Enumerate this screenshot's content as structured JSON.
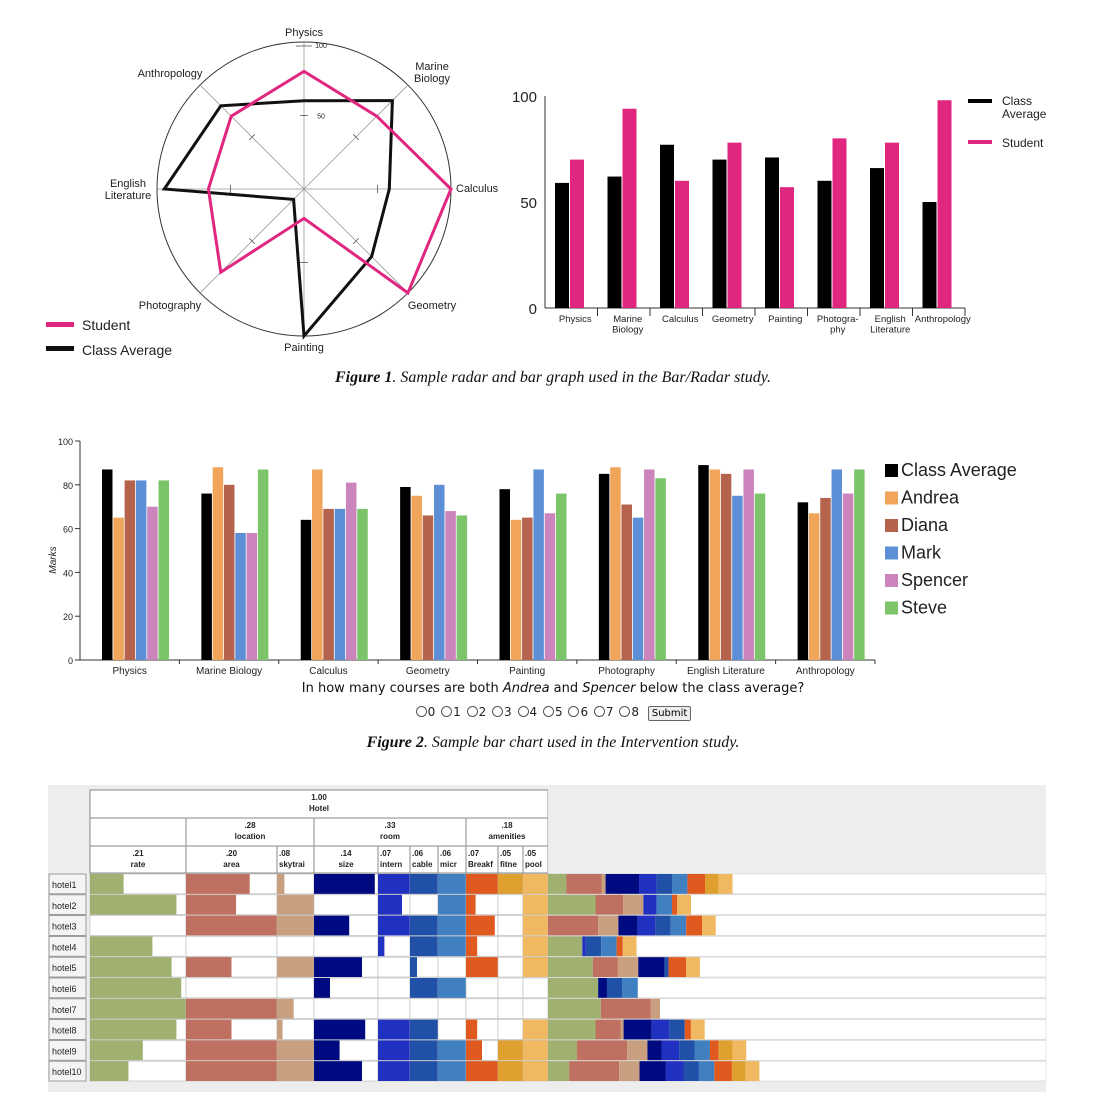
{
  "figure1": {
    "radar": {
      "axes": [
        "Physics",
        "Marine\nBiology",
        "Calculus",
        "Geometry",
        "Painting",
        "Photography",
        "English\nLiterature",
        "Anthropology"
      ],
      "ticks": [
        "100",
        "50"
      ],
      "series": [
        {
          "name": "Student",
          "color": "#e0267f",
          "values": [
            80,
            70,
            100,
            100,
            20,
            80,
            65,
            70
          ]
        },
        {
          "name": "Class Average",
          "color": "#111111",
          "values": [
            60,
            85,
            58,
            65,
            100,
            10,
            95,
            80
          ]
        }
      ],
      "legend": [
        "Student",
        "Class Average"
      ]
    },
    "bar": {
      "y_ticks": [
        "100",
        "50",
        "0"
      ],
      "categories": [
        "Physics",
        "Marine\nBiology",
        "Calculus",
        "Geometry",
        "Painting",
        "Photogra-\nphy",
        "English\nLiterature",
        "Anthropology"
      ],
      "series": [
        {
          "name": "Class\nAverage",
          "color": "#000000",
          "values": [
            59,
            62,
            77,
            70,
            71,
            60,
            66,
            50
          ]
        },
        {
          "name": "Student",
          "color": "#e0267f",
          "values": [
            70,
            94,
            60,
            78,
            57,
            80,
            78,
            98
          ]
        }
      ]
    },
    "caption_num": "Figure 1",
    "caption_text": ". Sample radar and bar graph used in the Bar/Radar study."
  },
  "figure2": {
    "ylabel": "Marks",
    "y_ticks": [
      "100",
      "80",
      "60",
      "40",
      "20",
      "0"
    ],
    "categories": [
      "Physics",
      "Marine Biology",
      "Calculus",
      "Geometry",
      "Painting",
      "Photography",
      "English Literature",
      "Anthropology"
    ],
    "series": [
      {
        "name": "Class Average",
        "color": "#000000",
        "values": [
          87,
          76,
          64,
          79,
          78,
          85,
          89,
          72
        ]
      },
      {
        "name": "Andrea",
        "color": "#f0a55a",
        "values": [
          65,
          88,
          87,
          75,
          64,
          88,
          87,
          67
        ]
      },
      {
        "name": "Diana",
        "color": "#b5634c",
        "values": [
          82,
          80,
          69,
          66,
          65,
          71,
          85,
          74
        ]
      },
      {
        "name": "Mark",
        "color": "#5c8fd6",
        "values": [
          82,
          58,
          69,
          80,
          87,
          65,
          75,
          87
        ]
      },
      {
        "name": "Spencer",
        "color": "#cc84bd",
        "values": [
          70,
          58,
          81,
          68,
          67,
          87,
          87,
          76
        ]
      },
      {
        "name": "Steve",
        "color": "#7cc46a",
        "values": [
          82,
          87,
          69,
          66,
          76,
          83,
          76,
          87
        ]
      }
    ],
    "question_pre": "In how many courses are both ",
    "question_a": "Andrea",
    "question_mid": " and ",
    "question_b": "Spencer",
    "question_post": " below the class average?",
    "options": [
      "0",
      "1",
      "2",
      "3",
      "4",
      "5",
      "6",
      "7",
      "8"
    ],
    "submit_label": "Submit",
    "caption_num": "Figure 2",
    "caption_text": ". Sample bar chart used in the Intervention study."
  },
  "figure3": {
    "root": {
      "weight": "1.00",
      "label": "Hotel"
    },
    "groups": [
      {
        "weight": ".28",
        "label": "location"
      },
      {
        "weight": ".33",
        "label": "room"
      },
      {
        "weight": ".18",
        "label": "amenities"
      }
    ],
    "attributes": [
      {
        "weight": ".21",
        "label": "rate",
        "color": "#a0b070"
      },
      {
        "weight": ".20",
        "label": "area",
        "color": "#c07060"
      },
      {
        "weight": ".08",
        "label": "skytrai",
        "color": "#c8a080"
      },
      {
        "weight": ".14",
        "label": "size",
        "color": "#000a80"
      },
      {
        "weight": ".07",
        "label": "intern",
        "color": "#2030c0"
      },
      {
        "weight": ".06",
        "label": "cable",
        "color": "#2050a8"
      },
      {
        "weight": ".06",
        "label": "micr",
        "color": "#4080c0"
      },
      {
        "weight": ".07",
        "label": "Breakf",
        "color": "#e05a20"
      },
      {
        "weight": ".05",
        "label": "fitne",
        "color": "#e0a030"
      },
      {
        "weight": ".05",
        "label": "pool",
        "color": "#f0b860"
      }
    ],
    "hotels": [
      "hotel1",
      "hotel2",
      "hotel3",
      "hotel4",
      "hotel5",
      "hotel6",
      "hotel7",
      "hotel8",
      "hotel9",
      "hotel10"
    ],
    "scores": [
      [
        0.35,
        0.7,
        0.2,
        0.95,
        1.0,
        1.0,
        1.0,
        1.0,
        1.0,
        1.0
      ],
      [
        0.9,
        0.55,
        1.0,
        0.0,
        0.75,
        0.0,
        1.0,
        0.3,
        0.0,
        1.0
      ],
      [
        0.0,
        1.0,
        1.0,
        0.55,
        1.0,
        1.0,
        1.0,
        0.9,
        0.0,
        1.0
      ],
      [
        0.65,
        0.0,
        0.0,
        0.0,
        0.2,
        1.0,
        1.0,
        0.35,
        0.0,
        1.0
      ],
      [
        0.85,
        0.5,
        1.0,
        0.75,
        0.0,
        0.25,
        0.0,
        1.0,
        0.0,
        1.0
      ],
      [
        0.95,
        0.0,
        0.0,
        0.25,
        0.0,
        1.0,
        1.0,
        0.0,
        0.0,
        0.0
      ],
      [
        1.0,
        1.0,
        0.45,
        0.0,
        0.0,
        0.0,
        0.0,
        0.0,
        0.0,
        0.0
      ],
      [
        0.9,
        0.5,
        0.15,
        0.8,
        1.0,
        1.0,
        0.0,
        0.35,
        0.0,
        1.0
      ],
      [
        0.55,
        1.0,
        1.0,
        0.4,
        1.0,
        1.0,
        1.0,
        0.5,
        1.0,
        1.0
      ],
      [
        0.4,
        1.0,
        1.0,
        0.75,
        1.0,
        1.0,
        1.0,
        1.0,
        1.0,
        1.0
      ]
    ]
  }
}
